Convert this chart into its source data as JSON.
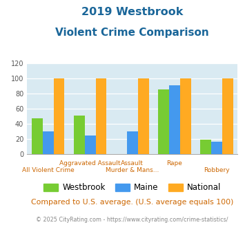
{
  "title_line1": "2019 Westbrook",
  "title_line2": "Violent Crime Comparison",
  "series": {
    "Westbrook": [
      48,
      51,
      0,
      86,
      19
    ],
    "Maine": [
      30,
      25,
      30,
      91,
      17
    ],
    "National": [
      100,
      100,
      100,
      100,
      100
    ]
  },
  "colors": {
    "Westbrook": "#77cc33",
    "Maine": "#4499ee",
    "National": "#ffaa22"
  },
  "ylim": [
    0,
    120
  ],
  "yticks": [
    0,
    20,
    40,
    60,
    80,
    100,
    120
  ],
  "title_color": "#1a6699",
  "background_color": "#d9eaf2",
  "note_text": "Compared to U.S. average. (U.S. average equals 100)",
  "note_color": "#cc6600",
  "copyright_text": "© 2025 CityRating.com - https://www.cityrating.com/crime-statistics/",
  "copyright_color": "#888888",
  "xlabel_color": "#cc6600",
  "top_xlabels": [
    "",
    "Aggravated Assault",
    "Assault",
    "Rape",
    ""
  ],
  "bot_xlabels": [
    "All Violent Crime",
    "",
    "Murder & Mans...",
    "",
    "Robbery"
  ]
}
